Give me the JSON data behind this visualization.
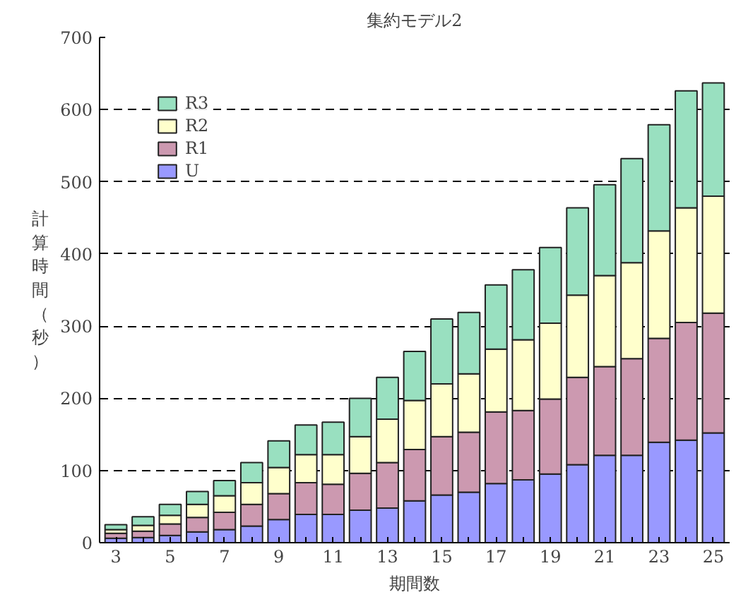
{
  "chart_data": {
    "type": "bar",
    "title": "集約モデル2",
    "xlabel": "期間数",
    "ylabel": "計算時間（秒）",
    "categories": [
      "3",
      null,
      "5",
      null,
      "7",
      null,
      "9",
      null,
      "11",
      null,
      "13",
      null,
      "15",
      null,
      "17",
      null,
      "19",
      null,
      "21",
      null,
      "23",
      null,
      "25"
    ],
    "stacked": true,
    "series": [
      {
        "name": "U",
        "color": "#9999ff",
        "values": [
          6,
          7,
          10,
          15,
          18,
          23,
          32,
          39,
          39,
          45,
          48,
          58,
          66,
          70,
          82,
          87,
          95,
          108,
          121,
          121,
          139,
          142,
          152
        ]
      },
      {
        "name": "R1",
        "color": "#cc99b0",
        "values": [
          7,
          9,
          16,
          20,
          24,
          30,
          36,
          44,
          42,
          51,
          63,
          71,
          81,
          83,
          99,
          96,
          104,
          121,
          123,
          134,
          144,
          163,
          166
        ]
      },
      {
        "name": "R2",
        "color": "#ffffcc",
        "values": [
          5,
          8,
          12,
          18,
          23,
          30,
          36,
          39,
          41,
          51,
          60,
          68,
          73,
          81,
          87,
          98,
          105,
          114,
          126,
          133,
          149,
          159,
          162
        ]
      },
      {
        "name": "R3",
        "color": "#99e0c0",
        "values": [
          7,
          12,
          15,
          18,
          21,
          28,
          37,
          41,
          45,
          53,
          58,
          68,
          90,
          85,
          89,
          97,
          105,
          121,
          126,
          144,
          147,
          162,
          157
        ]
      }
    ],
    "ylim": [
      0,
      700
    ],
    "yticks": [
      0,
      100,
      200,
      300,
      400,
      500,
      600,
      700
    ],
    "grid": "y",
    "legend": "top left"
  }
}
